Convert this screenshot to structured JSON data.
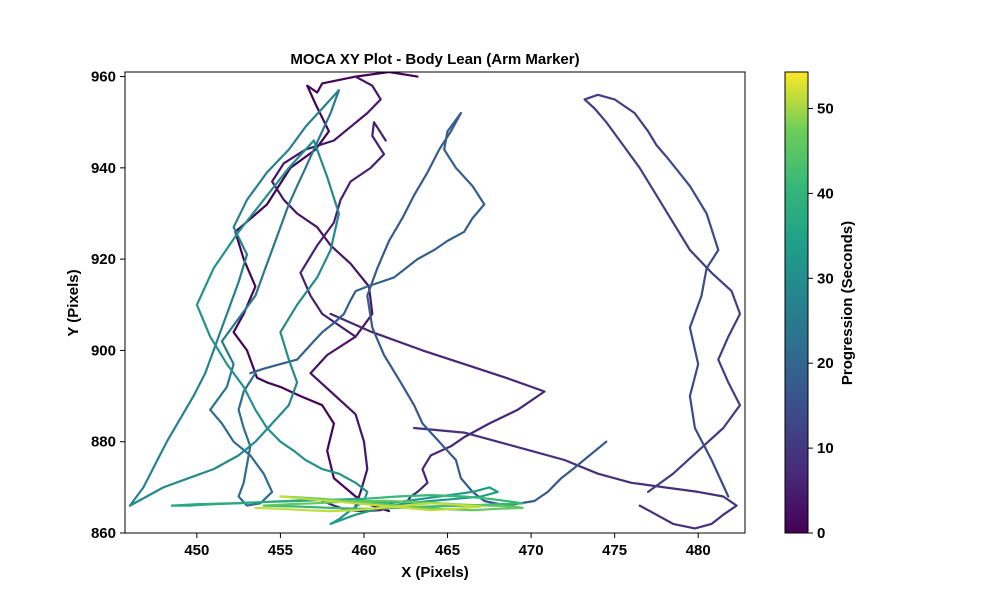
{
  "chart_data": {
    "type": "line",
    "title": "MOCA XY Plot - Body Lean (Arm Marker)",
    "xlabel": "X (Pixels)",
    "ylabel": "Y (Pixels)",
    "xlim": [
      445.7,
      482.8
    ],
    "ylim": [
      860,
      961
    ],
    "xticks": [
      450,
      455,
      460,
      465,
      470,
      475,
      480
    ],
    "yticks": [
      860,
      880,
      900,
      920,
      940,
      960
    ],
    "grid": false,
    "colorbar": {
      "label": "Progression (Seconds)",
      "range": [
        0,
        54.3
      ],
      "ticks": [
        0,
        10,
        20,
        30,
        40,
        50
      ],
      "colormap": "viridis"
    },
    "series": [
      {
        "t": 0.5,
        "x": [
          461.5,
          460.5,
          459.5,
          458.2,
          457.8,
          458.2,
          457.5,
          456.2,
          455.0,
          454.2,
          453.6,
          453.0,
          452.2,
          452.8,
          453.5,
          452.8,
          452.3,
          454.2,
          455.6,
          457.1,
          457.9,
          457.1,
          456.6,
          457.2,
          457.5,
          459.5,
          461.5,
          463.2
        ],
        "y": [
          864.8,
          866.0,
          868.0,
          872.0,
          878.0,
          884.0,
          888.0,
          890.0,
          892.0,
          893.0,
          894.0,
          900.0,
          904.0,
          908.0,
          914.0,
          920.0,
          926.0,
          932.0,
          940.0,
          944.0,
          948.0,
          954.0,
          958.0,
          956.5,
          958.5,
          960.0,
          961.0,
          960.0
        ]
      },
      {
        "t": 3.5,
        "x": [
          459.5,
          459.8,
          460.2,
          460.0,
          459.5,
          458.0,
          456.8,
          457.8,
          459.5,
          460.5,
          460.3,
          459.2,
          458.0,
          457.2,
          456.0,
          455.2,
          454.5,
          455.2,
          456.5,
          458.2,
          459.2,
          460.2,
          461.0,
          460.5,
          459.5
        ],
        "y": [
          866.0,
          869.0,
          874.0,
          880.0,
          886.0,
          891.0,
          895.0,
          899.0,
          903.0,
          908.0,
          914.0,
          919.0,
          923.0,
          927.0,
          930.0,
          933.0,
          937.0,
          941.0,
          944.0,
          946.0,
          949.0,
          952.0,
          955.0,
          958.0,
          960.0
        ]
      },
      {
        "t": 5.5,
        "x": [
          459.5,
          457.5,
          456.8,
          456.2,
          457.2,
          458.2,
          458.6,
          459.2,
          460.4,
          461.2,
          460.5,
          460.6,
          461.3
        ],
        "y": [
          903.0,
          908.0,
          912.0,
          917.0,
          923.0,
          928.0,
          933.0,
          937.0,
          940.0,
          943.0,
          947.0,
          950.0,
          946.0
        ]
      },
      {
        "t": 6.5,
        "x": [
          458.0,
          460.5,
          463.5,
          466.0,
          468.5,
          470.8,
          469.2,
          467.5,
          466.0,
          465.2,
          464.0,
          463.5,
          463.8,
          463.2,
          462.8,
          462.5,
          461.8,
          461.0,
          460.0,
          459.0,
          458.2,
          457.5
        ],
        "y": [
          908.0,
          904.0,
          900.0,
          897.0,
          894.0,
          891.0,
          887.0,
          884.0,
          881.0,
          879.0,
          877.0,
          874.0,
          871.0,
          869.0,
          868.0,
          866.5,
          866.0,
          865.0,
          864.8,
          865.0,
          866.0,
          867.0
        ]
      },
      {
        "t": 8.5,
        "x": [
          463.0,
          466.0,
          468.0,
          470.0,
          472.0,
          474.0,
          476.0,
          478.0,
          480.0,
          481.5,
          482.3,
          481.5,
          480.8,
          479.8,
          478.5,
          477.5,
          476.5
        ],
        "y": [
          883.0,
          882.0,
          880.0,
          878.0,
          876.0,
          873.0,
          871.0,
          870.0,
          869.0,
          868.0,
          866.0,
          864.0,
          862.0,
          861.0,
          862.0,
          864.0,
          866.0
        ]
      },
      {
        "t": 11.5,
        "x": [
          477.0,
          478.5,
          480.0,
          481.5,
          482.5,
          481.8,
          481.2,
          481.8,
          482.5,
          482.0,
          480.8,
          479.5,
          478.5,
          477.5,
          476.5,
          475.5,
          474.5,
          473.8,
          473.2,
          474.0,
          475.0,
          476.2,
          477.0,
          477.5,
          478.2
        ],
        "y": [
          869.0,
          873.0,
          878.0,
          883.0,
          888.0,
          893.0,
          898.0,
          903.0,
          908.0,
          913.0,
          917.0,
          922.0,
          928.0,
          934.0,
          940.0,
          945.0,
          950.0,
          953.0,
          955.0,
          956.0,
          955.0,
          952.0,
          948.0,
          945.0,
          942.0
        ]
      },
      {
        "t": 13.5,
        "x": [
          478.2,
          479.5,
          480.5,
          481.2,
          480.5,
          480.2,
          479.5,
          480.0,
          479.5,
          479.8,
          480.8,
          481.8
        ],
        "y": [
          942.0,
          936.0,
          930.0,
          922.0,
          918.0,
          912.0,
          905.0,
          897.0,
          890.0,
          883.0,
          876.0,
          868.0
        ]
      },
      {
        "t": 17.0,
        "x": [
          474.5,
          473.5,
          472.5,
          471.8,
          471.0,
          470.2,
          468.5,
          467.2,
          466.5,
          465.8,
          465.5,
          464.5,
          463.5,
          463.0,
          462.2,
          461.2,
          460.5,
          460.2,
          460.8,
          461.5,
          462.3,
          463.0,
          463.8,
          464.5,
          465.2,
          465.8
        ],
        "y": [
          880.0,
          877.0,
          874.0,
          872.0,
          869.0,
          867.0,
          866.0,
          867.0,
          869.0,
          872.0,
          876.0,
          880.0,
          884.0,
          888.0,
          893.0,
          899.0,
          905.0,
          912.0,
          918.0,
          924.0,
          929.0,
          934.0,
          939.0,
          944.0,
          948.0,
          952.0
        ]
      },
      {
        "t": 18.5,
        "x": [
          465.8,
          465.0,
          464.8,
          465.5,
          466.5,
          467.2,
          466.5,
          466.0,
          465.0,
          464.2,
          463.2,
          462.5,
          461.8,
          461.0,
          460.2,
          459.5,
          459.2,
          458.8,
          458.2,
          457.5,
          457.0,
          456.5,
          456.0,
          455.0,
          454.0,
          453.2
        ],
        "y": [
          952.0,
          948.0,
          944.0,
          940.0,
          936.0,
          932.0,
          929.0,
          926.0,
          924.0,
          922.0,
          920.0,
          918.0,
          916.0,
          915.0,
          914.0,
          913.0,
          911.0,
          908.0,
          906.0,
          904.0,
          902.0,
          900.0,
          898.0,
          897.0,
          896.0,
          895.0
        ]
      },
      {
        "t": 21.5,
        "x": [
          453.5,
          452.8,
          452.5,
          452.8,
          453.2,
          453.0,
          452.8,
          452.5,
          453.0,
          453.8,
          454.5,
          454.0,
          453.2,
          452.2,
          451.5,
          450.8
        ],
        "y": [
          895.0,
          891.0,
          887.0,
          883.0,
          879.0,
          875.0,
          871.0,
          868.0,
          866.0,
          866.5,
          869.0,
          873.0,
          877.0,
          880.0,
          884.0,
          887.0
        ]
      },
      {
        "t": 24.5,
        "x": [
          450.8,
          451.8,
          452.2,
          451.5,
          452.5,
          453.5,
          454.0,
          454.5,
          455.0,
          455.5,
          456.0,
          456.5,
          457.0,
          457.5,
          458.0,
          458.5
        ],
        "y": [
          887.0,
          892.0,
          897.0,
          902.0,
          907.0,
          912.0,
          917.0,
          922.0,
          927.0,
          932.0,
          936.0,
          940.0,
          944.0,
          948.0,
          952.0,
          957.0
        ]
      },
      {
        "t": 27.0,
        "x": [
          458.5,
          457.5,
          456.5,
          455.5,
          454.2,
          453.0,
          452.2,
          453.0,
          452.5,
          452.0,
          451.5,
          451.0,
          450.5,
          449.8,
          449.0,
          448.2,
          447.5,
          446.8,
          446.0
        ],
        "y": [
          957.0,
          953.0,
          949.0,
          944.0,
          939.0,
          933.0,
          927.0,
          921.0,
          915.0,
          910.0,
          905.0,
          900.0,
          895.0,
          890.0,
          885.0,
          880.0,
          875.0,
          870.0,
          866.0
        ]
      },
      {
        "t": 29.0,
        "x": [
          446.0,
          447.0,
          448.0,
          449.5,
          451.0,
          452.5,
          453.5,
          454.5,
          455.5,
          456.0,
          455.5,
          455.0,
          456.0,
          457.2,
          458.0,
          458.5,
          457.8,
          457.0
        ],
        "y": [
          866.0,
          868.0,
          870.0,
          872.0,
          874.0,
          877.0,
          880.0,
          884.0,
          888.0,
          893.0,
          898.0,
          904.0,
          910.0,
          916.0,
          922.0,
          930.0,
          938.0,
          946.0
        ]
      },
      {
        "t": 31.0,
        "x": [
          457.0,
          455.5,
          454.0,
          452.5,
          451.0,
          450.0,
          450.8,
          451.8,
          452.8,
          453.5,
          454.2,
          455.0,
          455.8,
          456.5,
          457.5,
          458.5,
          459.5,
          460.2,
          460.0,
          459.2,
          458.5,
          458.0
        ],
        "y": [
          946.0,
          940.0,
          933.0,
          926.0,
          918.0,
          910.0,
          903.0,
          897.0,
          892.0,
          887.0,
          883.0,
          880.0,
          878.0,
          876.0,
          874.0,
          873.0,
          871.0,
          869.0,
          867.0,
          865.0,
          863.0,
          862.0
        ]
      },
      {
        "t": 33.5,
        "x": [
          458.0,
          459.5,
          461.0,
          462.5,
          464.0,
          465.5,
          467.0,
          468.0,
          467.5,
          466.5,
          465.5,
          464.5,
          463.5,
          462.5,
          461.5
        ],
        "y": [
          862.0,
          864.0,
          865.5,
          866.5,
          867.0,
          867.5,
          868.0,
          869.0,
          870.0,
          869.0,
          868.5,
          868.0,
          867.5,
          867.0,
          866.5
        ]
      },
      {
        "t": 37.0,
        "x": [
          461.5,
          460.0,
          458.5,
          457.0,
          455.5,
          454.0,
          452.5,
          451.0,
          449.5,
          448.5,
          450.0,
          452.0,
          454.0,
          456.0,
          458.0,
          460.0
        ],
        "y": [
          866.5,
          866.8,
          867.0,
          867.3,
          867.0,
          866.8,
          866.5,
          866.3,
          866.0,
          866.0,
          866.3,
          866.5,
          866.8,
          867.0,
          867.3,
          867.5
        ]
      },
      {
        "t": 41.0,
        "x": [
          460.0,
          462.0,
          464.0,
          466.0,
          467.5,
          468.5,
          469.5,
          468.0,
          466.0,
          464.0,
          462.0,
          460.0,
          458.0,
          456.0,
          454.0
        ],
        "y": [
          867.5,
          868.0,
          868.3,
          868.0,
          867.5,
          867.0,
          866.5,
          866.3,
          866.0,
          865.8,
          865.5,
          865.3,
          865.5,
          865.8,
          866.0
        ]
      },
      {
        "t": 46.0,
        "x": [
          454.0,
          455.5,
          457.0,
          458.5,
          460.0,
          461.5,
          463.0,
          464.5,
          466.0,
          467.5,
          469.0,
          469.5,
          468.0,
          466.5,
          465.0,
          463.5,
          462.0,
          460.5,
          459.0,
          457.5,
          456.0,
          455.0
        ],
        "y": [
          866.0,
          866.3,
          866.5,
          866.8,
          867.0,
          867.0,
          866.8,
          866.5,
          866.2,
          866.0,
          865.8,
          865.5,
          865.3,
          865.0,
          865.2,
          865.5,
          866.0,
          866.5,
          867.0,
          867.5,
          867.8,
          868.0
        ]
      },
      {
        "t": 51.5,
        "x": [
          455.0,
          456.5,
          458.0,
          459.5,
          461.0,
          462.5,
          464.0,
          465.5,
          467.0,
          465.5,
          464.0,
          462.5,
          461.0,
          459.5,
          458.0,
          456.5,
          455.0,
          453.5
        ],
        "y": [
          868.0,
          867.5,
          867.0,
          866.5,
          866.0,
          865.5,
          865.0,
          865.3,
          865.8,
          866.2,
          866.5,
          866.0,
          865.5,
          865.0,
          864.8,
          865.0,
          865.3,
          865.5
        ]
      }
    ]
  }
}
